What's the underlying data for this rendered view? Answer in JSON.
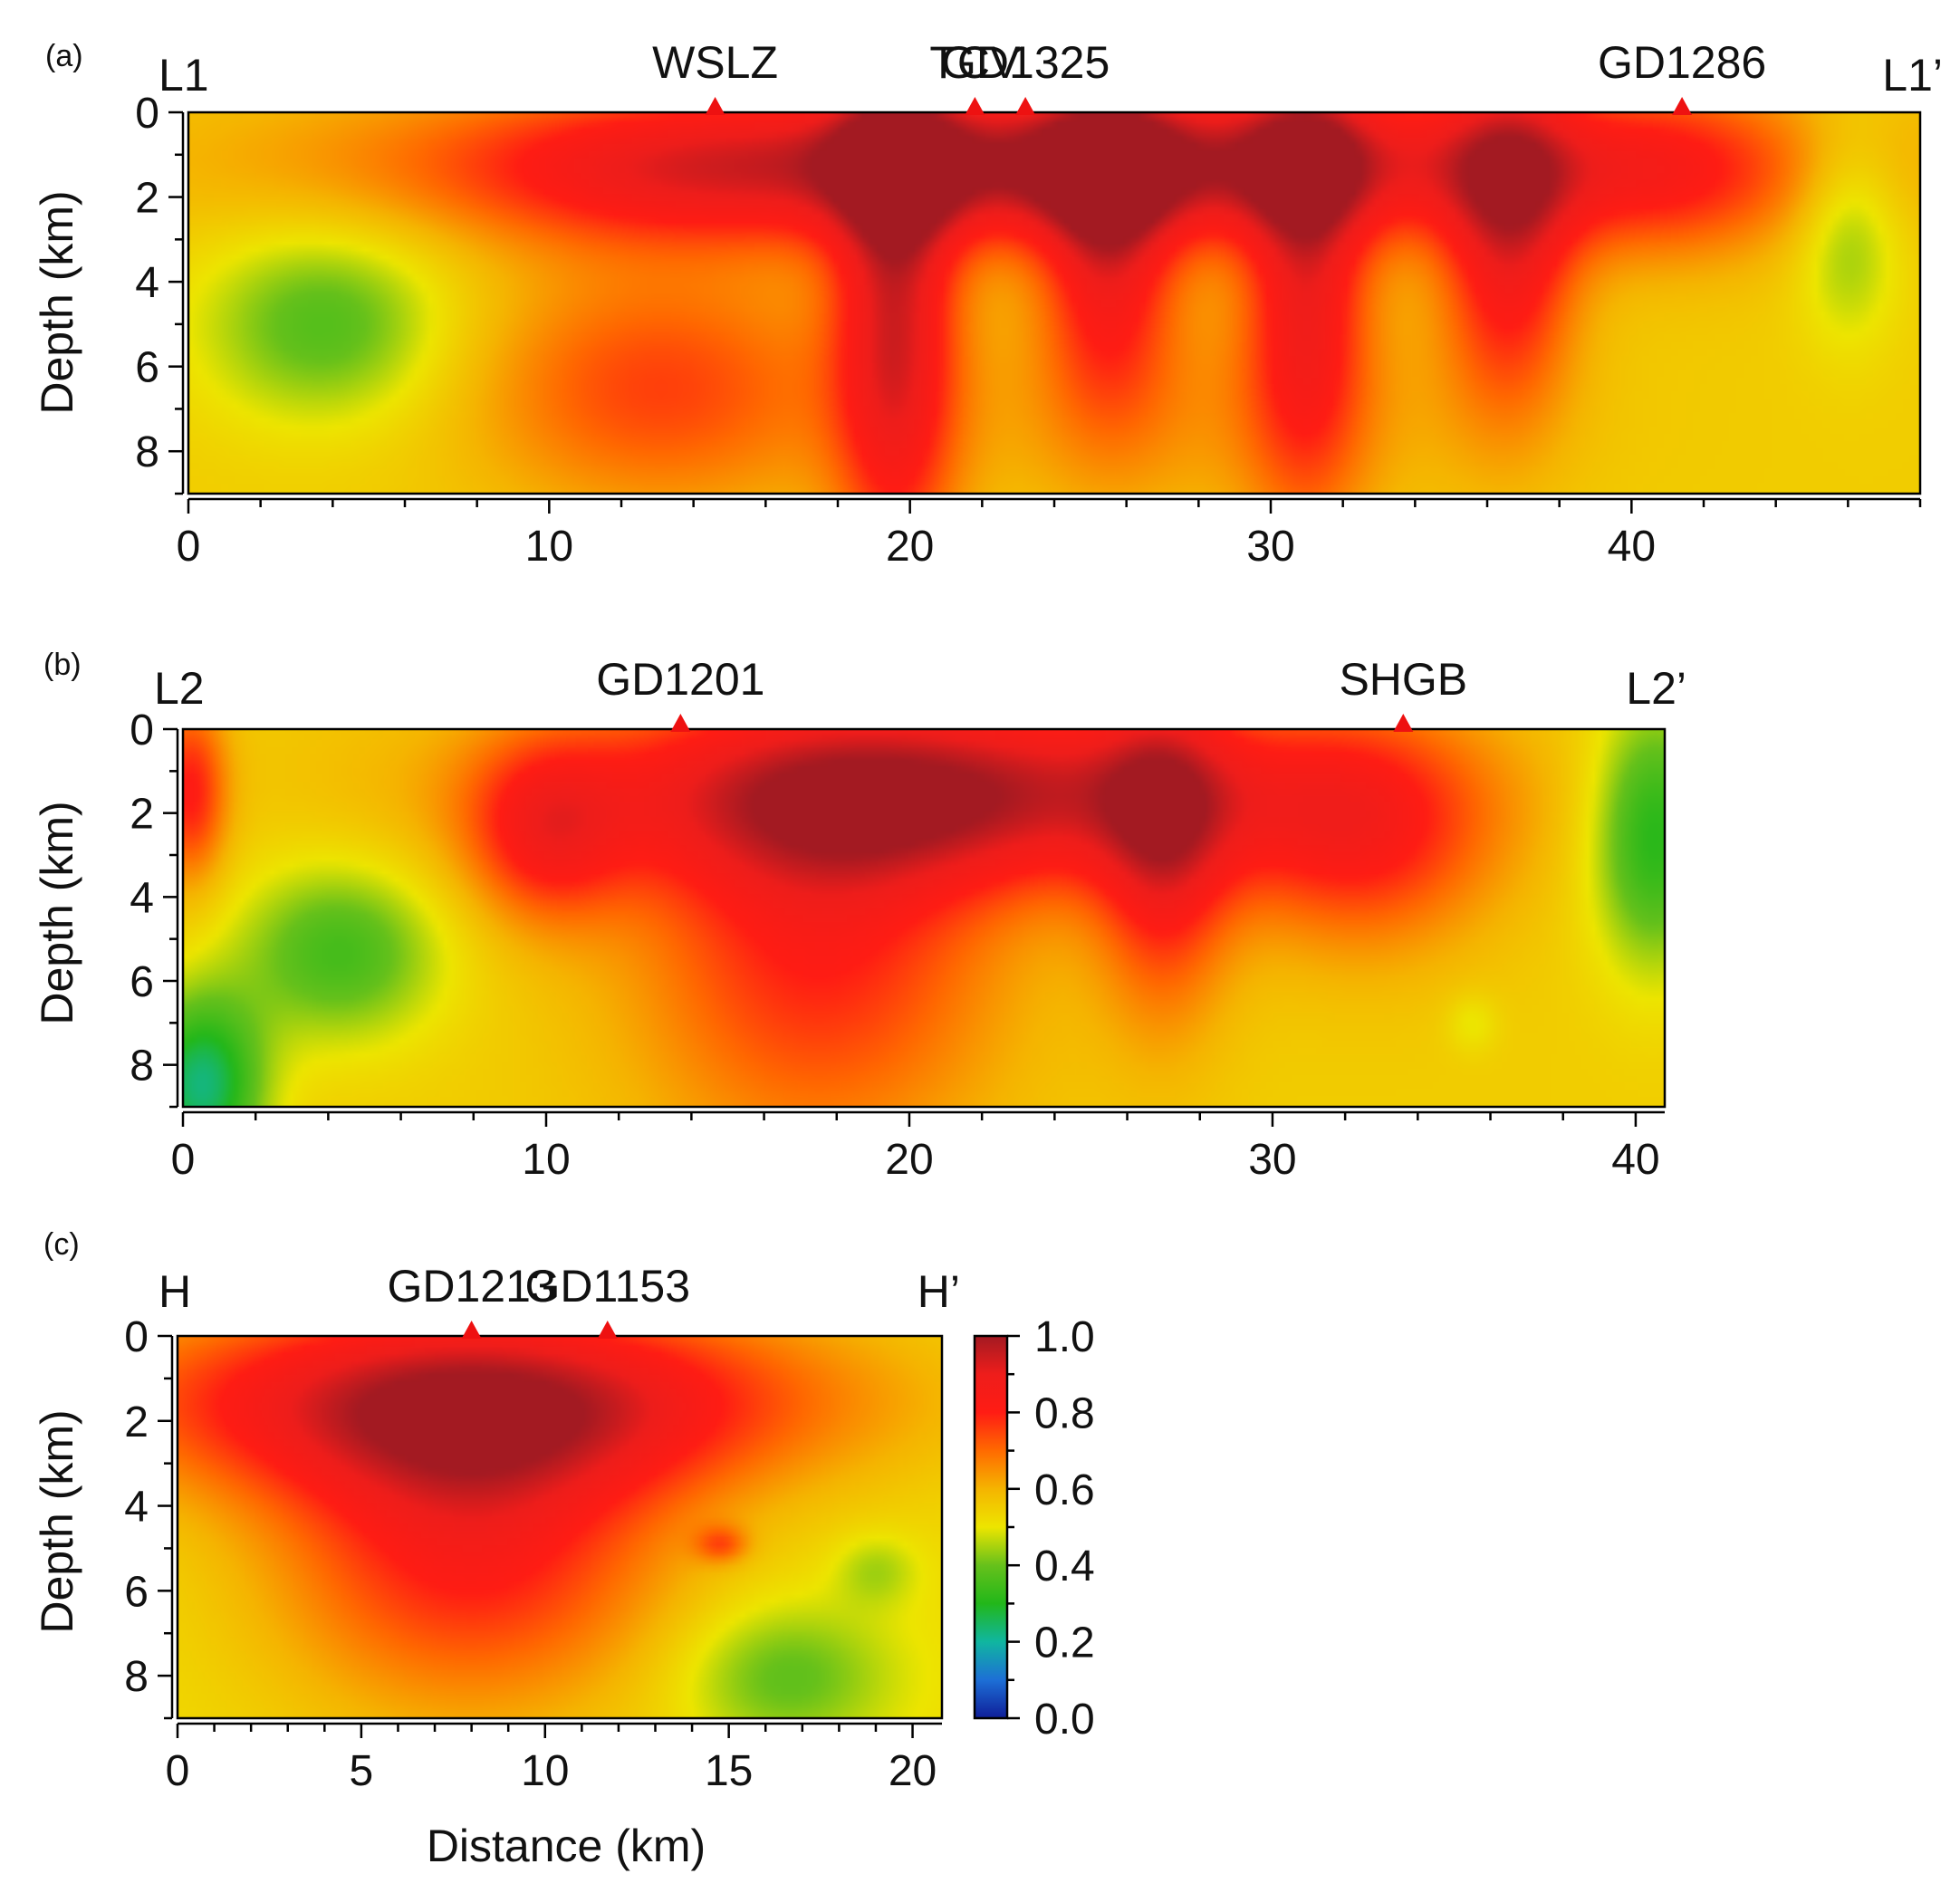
{
  "chart_data": [
    {
      "type": "heatmap",
      "panel_label": "(a)",
      "left_label": "L1",
      "right_label": "L1’",
      "ylabel": "Depth (km)",
      "xlabel": "",
      "xlim": [
        0,
        48
      ],
      "ylim": [
        0,
        9
      ],
      "xticks": [
        0,
        10,
        20,
        30,
        40
      ],
      "xtick_labels": [
        "0",
        "10",
        "20",
        "30",
        "40"
      ],
      "yticks": [
        0,
        2,
        4,
        6,
        8
      ],
      "ytick_labels": [
        "0",
        "2",
        "4",
        "6",
        "8"
      ],
      "stations": [
        {
          "name": "WSLZ",
          "x": 14.6
        },
        {
          "name": "TCV",
          "x": 21.8
        },
        {
          "name": "GD1325",
          "x": 23.2
        },
        {
          "name": "GD1286",
          "x": 41.4
        }
      ],
      "field": {
        "base": 0.55,
        "blobs": [
          {
            "x": 3.8,
            "y": 5.0,
            "sx": 2.4,
            "sy": 1.6,
            "a": -0.18
          },
          {
            "x": 46.0,
            "y": 2.8,
            "sx": 1.0,
            "sy": 1.8,
            "a": -0.13
          },
          {
            "x": 24.0,
            "y": 1.2,
            "sx": 11.5,
            "sy": 1.3,
            "a": 0.45
          },
          {
            "x": 12.5,
            "y": 1.5,
            "sx": 3.5,
            "sy": 1.3,
            "a": 0.08
          },
          {
            "x": 19.6,
            "y": 4.5,
            "sx": 1.2,
            "sy": 4.5,
            "a": 0.35
          },
          {
            "x": 25.5,
            "y": 3.0,
            "sx": 1.3,
            "sy": 2.8,
            "a": 0.3
          },
          {
            "x": 31.0,
            "y": 3.8,
            "sx": 1.2,
            "sy": 3.8,
            "a": 0.3
          },
          {
            "x": 36.6,
            "y": 3.0,
            "sx": 1.3,
            "sy": 2.8,
            "a": 0.3
          },
          {
            "x": 13.0,
            "y": 6.5,
            "sx": 3.5,
            "sy": 2.0,
            "a": 0.2
          },
          {
            "x": 41.0,
            "y": 1.5,
            "sx": 2.5,
            "sy": 1.5,
            "a": 0.15
          },
          {
            "x": 28.0,
            "y": 7.0,
            "sx": 6.0,
            "sy": 2.0,
            "a": 0.08
          }
        ]
      }
    },
    {
      "type": "heatmap",
      "panel_label": "(b)",
      "left_label": "L2",
      "right_label": "L2’",
      "ylabel": "Depth (km)",
      "xlabel": "",
      "xlim": [
        0,
        40.8
      ],
      "ylim": [
        0,
        9
      ],
      "xticks": [
        0,
        10,
        20,
        30,
        40
      ],
      "xtick_labels": [
        "0",
        "10",
        "20",
        "30",
        "40"
      ],
      "yticks": [
        0,
        2,
        4,
        6,
        8
      ],
      "ytick_labels": [
        "0",
        "2",
        "4",
        "6",
        "8"
      ],
      "stations": [
        {
          "name": "GD1201",
          "x": 13.7
        },
        {
          "name": "SHGB",
          "x": 33.6
        }
      ],
      "field": {
        "base": 0.55,
        "blobs": [
          {
            "x": 4.3,
            "y": 5.3,
            "sx": 2.0,
            "sy": 1.5,
            "a": -0.2
          },
          {
            "x": 0.5,
            "y": 8.5,
            "sx": 1.2,
            "sy": 1.5,
            "a": -0.32
          },
          {
            "x": 40.5,
            "y": 2.5,
            "sx": 1.2,
            "sy": 2.2,
            "a": -0.25
          },
          {
            "x": 35.5,
            "y": 7.0,
            "sx": 0.5,
            "sy": 0.5,
            "a": -0.06
          },
          {
            "x": 0.2,
            "y": 1.5,
            "sx": 0.7,
            "sy": 1.5,
            "a": 0.25
          },
          {
            "x": 21.0,
            "y": 1.5,
            "sx": 7.5,
            "sy": 1.6,
            "a": 0.4
          },
          {
            "x": 17.5,
            "y": 5.0,
            "sx": 3.5,
            "sy": 3.5,
            "a": 0.25
          },
          {
            "x": 27.0,
            "y": 3.0,
            "sx": 1.3,
            "sy": 2.8,
            "a": 0.25
          },
          {
            "x": 10.0,
            "y": 2.5,
            "sx": 1.5,
            "sy": 1.5,
            "a": 0.22
          },
          {
            "x": 32.5,
            "y": 2.5,
            "sx": 2.5,
            "sy": 2.0,
            "a": 0.22
          }
        ]
      }
    },
    {
      "type": "heatmap",
      "panel_label": "(c)",
      "left_label": "H",
      "right_label": "H’",
      "ylabel": "Depth (km)",
      "xlabel": "Distance (km)",
      "xlim": [
        0,
        20.8
      ],
      "ylim": [
        0,
        9
      ],
      "xticks": [
        0,
        5,
        10,
        15,
        20
      ],
      "xtick_labels": [
        "0",
        "5",
        "10",
        "15",
        "20"
      ],
      "yticks": [
        0,
        2,
        4,
        6,
        8
      ],
      "ytick_labels": [
        "0",
        "2",
        "4",
        "6",
        "8"
      ],
      "stations": [
        {
          "name": "GD1213",
          "x": 8.0
        },
        {
          "name": "GD1153",
          "x": 11.7
        }
      ],
      "field": {
        "base": 0.52,
        "blobs": [
          {
            "x": 8.0,
            "y": 1.5,
            "sx": 7.0,
            "sy": 1.6,
            "a": 0.4
          },
          {
            "x": 8.0,
            "y": 4.8,
            "sx": 3.8,
            "sy": 2.8,
            "a": 0.3
          },
          {
            "x": 14.8,
            "y": 4.9,
            "sx": 0.5,
            "sy": 0.3,
            "a": 0.15
          },
          {
            "x": 16.5,
            "y": 8.0,
            "sx": 2.0,
            "sy": 1.2,
            "a": -0.14
          },
          {
            "x": 19.0,
            "y": 5.5,
            "sx": 0.8,
            "sy": 0.6,
            "a": -0.08
          }
        ]
      }
    }
  ],
  "colorbar": {
    "min": 0.0,
    "max": 1.0,
    "tick_labels": [
      "1.0",
      "0.8",
      "0.6",
      "0.4",
      "0.2",
      "0.0"
    ],
    "stops": [
      [
        0.0,
        "#0f1e99"
      ],
      [
        0.1,
        "#1d6fd6"
      ],
      [
        0.2,
        "#10b6a0"
      ],
      [
        0.3,
        "#22b71a"
      ],
      [
        0.4,
        "#66c11b"
      ],
      [
        0.5,
        "#ede500"
      ],
      [
        0.6,
        "#f5b400"
      ],
      [
        0.7,
        "#ff6a00"
      ],
      [
        0.8,
        "#ff1c14"
      ],
      [
        0.9,
        "#ee1d1b"
      ],
      [
        1.0,
        "#a31a22"
      ]
    ]
  },
  "colors": {
    "station_marker": "#ee1111",
    "frame": "#000000",
    "text": "#111111"
  }
}
